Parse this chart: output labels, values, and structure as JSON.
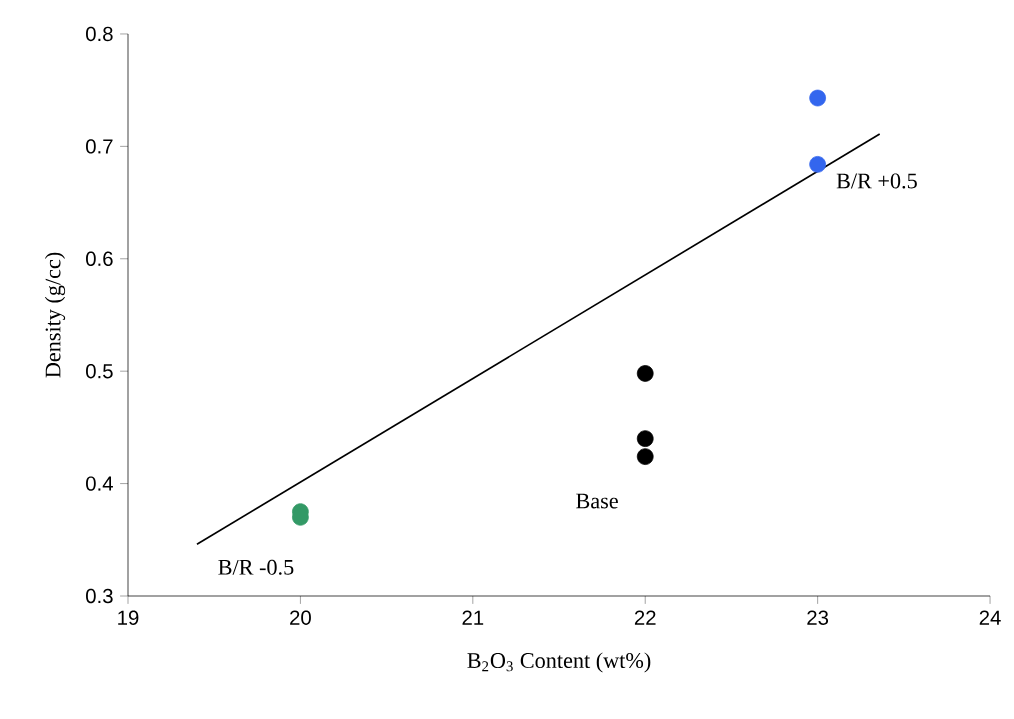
{
  "chart_data": {
    "type": "scatter",
    "xlabel": "B$_{2}$O$_{3}$ Content (wt%)",
    "ylabel": "Density (g/cc)",
    "xlim": [
      19,
      24
    ],
    "ylim": [
      0.3,
      0.8
    ],
    "xticks": [
      19,
      20,
      21,
      22,
      23,
      24
    ],
    "yticks": [
      0.3,
      0.4,
      0.5,
      0.6,
      0.7,
      0.8
    ],
    "grid": false,
    "series": [
      {
        "color": "#3366ee",
        "marker": "circle",
        "x": [
          23,
          23
        ],
        "values": [
          0.743,
          0.684
        ]
      },
      {
        "color": "#000000",
        "marker": "circle",
        "x": [
          22,
          22,
          22
        ],
        "values": [
          0.498,
          0.44,
          0.424
        ]
      },
      {
        "color": "#339966",
        "marker": "circle",
        "x": [
          20,
          20
        ],
        "values": [
          0.375,
          0.37
        ]
      },
      {
        "type": "line",
        "marker": "none",
        "color": "#000000",
        "x": [
          19.4,
          23.36
        ],
        "values": [
          0.346,
          0.711
        ]
      }
    ],
    "annotations": [
      "B/R +0.5",
      "Base",
      "B/R -0.5"
    ]
  }
}
